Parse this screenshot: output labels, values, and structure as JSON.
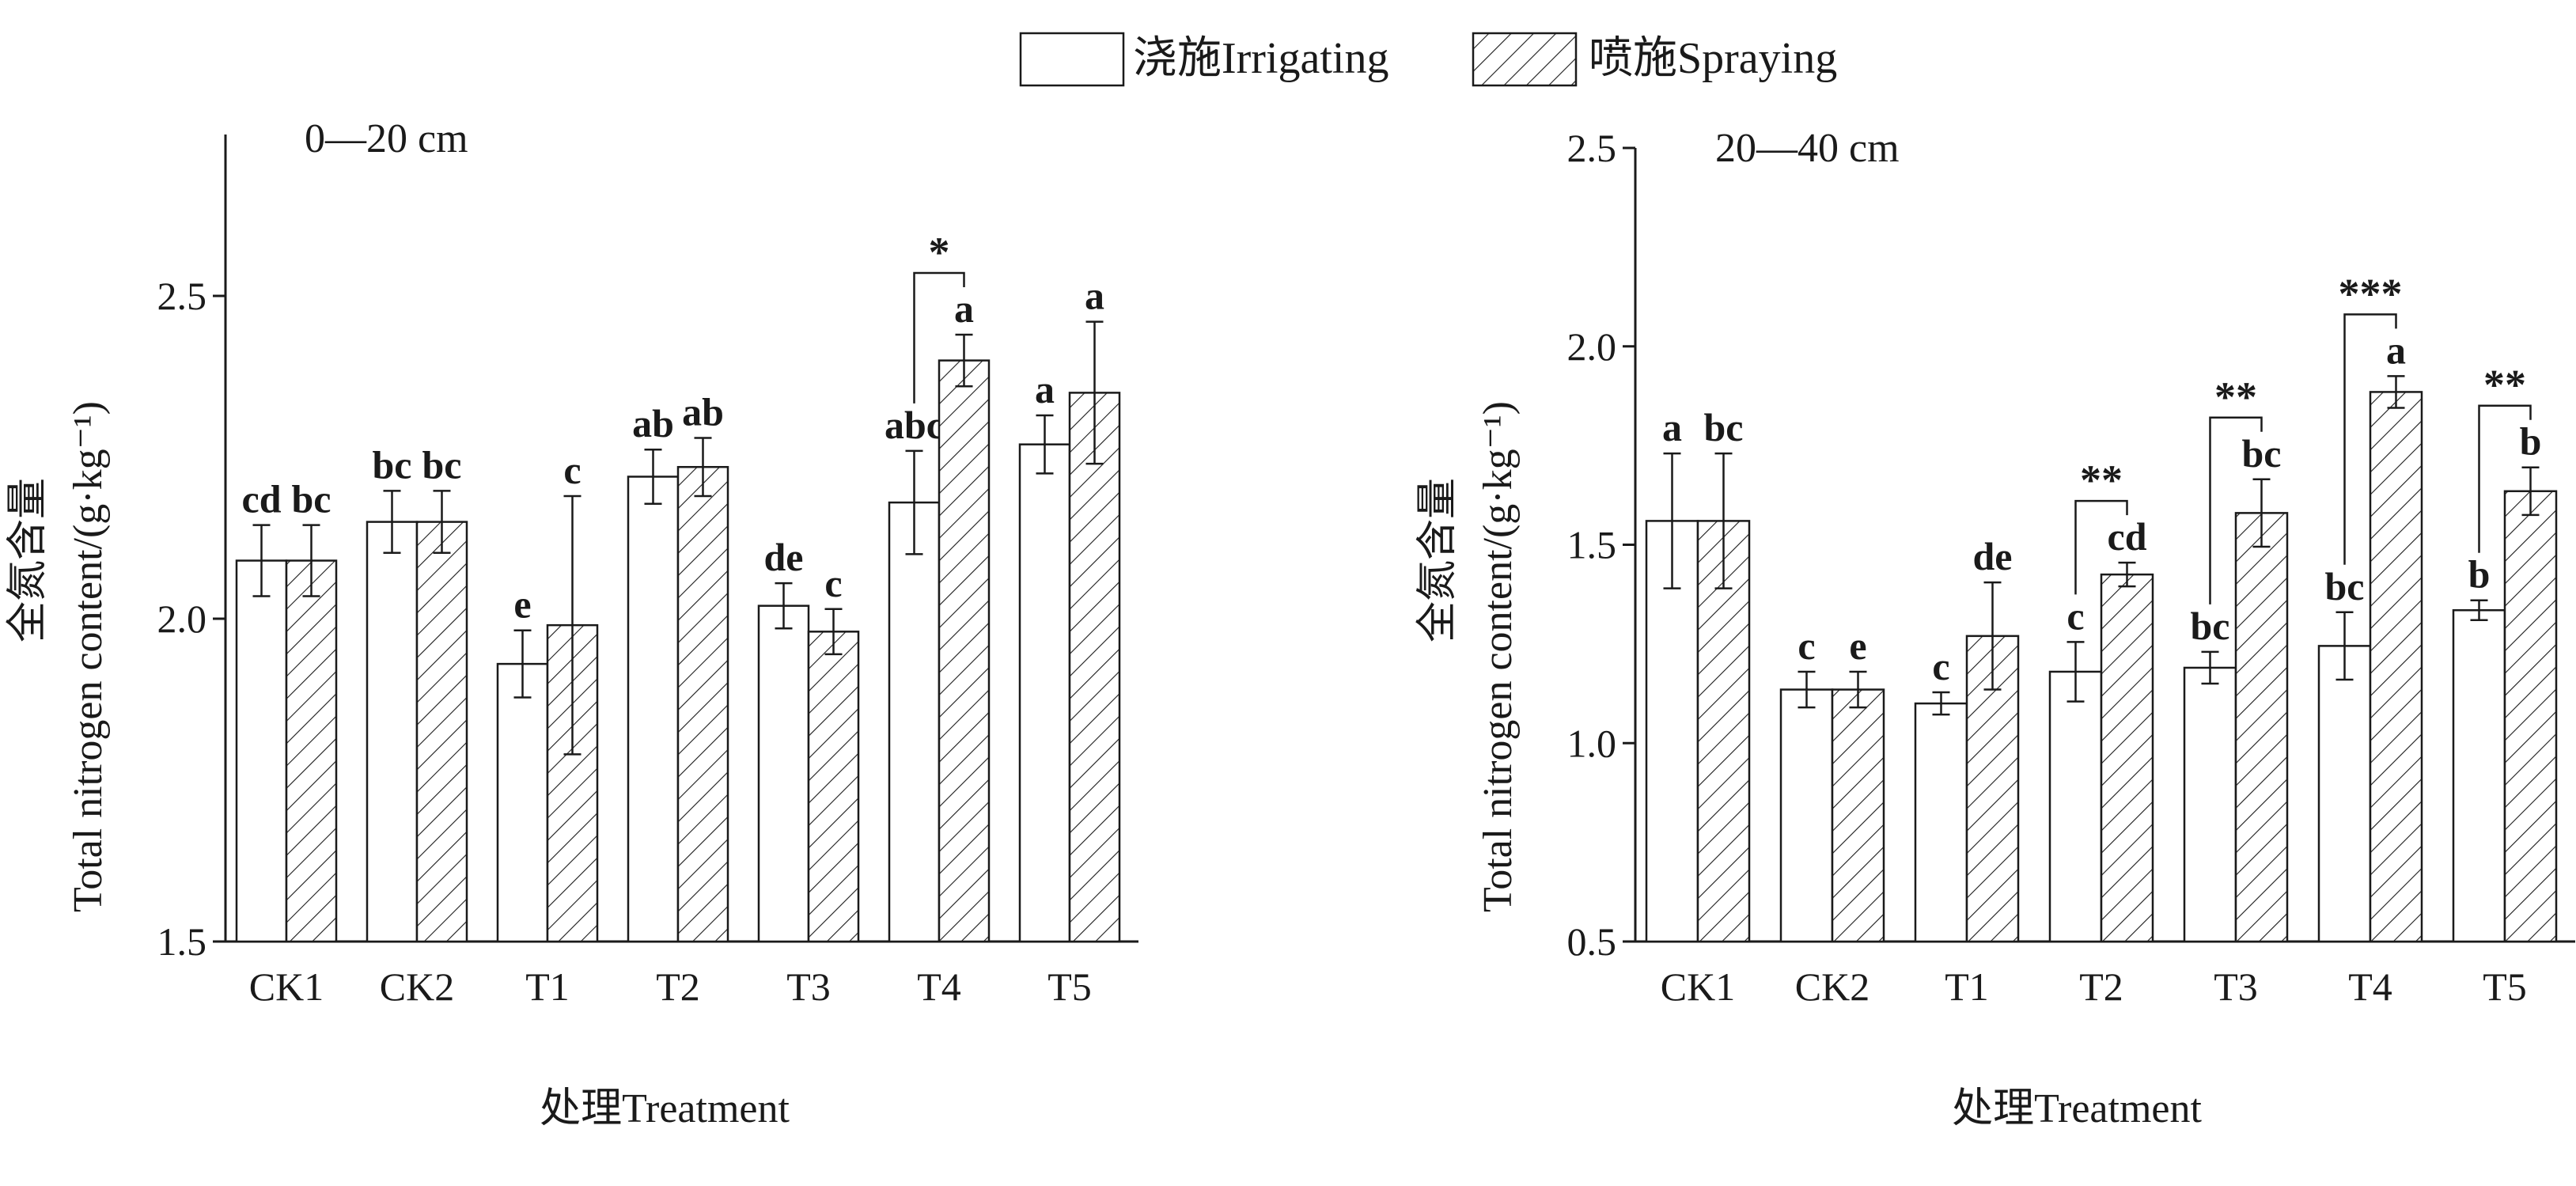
{
  "legend": {
    "irrigating_label": "浇施Irrigating",
    "spraying_label": "喷施Spraying"
  },
  "chart_data": [
    {
      "type": "bar",
      "panel_label": "0—20 cm",
      "xlabel": "处理Treatment",
      "ylabel": "Total nitrogen content/(g·kg⁻¹)",
      "ylabel_cn": "全氮含量",
      "categories": [
        "CK1",
        "CK2",
        "T1",
        "T2",
        "T3",
        "T4",
        "T5"
      ],
      "ylim": [
        1.5,
        2.75
      ],
      "yticks": [
        "1.5",
        "2.0",
        "2.5"
      ],
      "ytick_values": [
        1.5,
        2.0,
        2.5
      ],
      "series": [
        {
          "name": "浇施Irrigating",
          "pattern": "plain",
          "values": [
            2.09,
            2.15,
            1.93,
            2.22,
            2.02,
            2.18,
            2.27
          ],
          "errors": [
            0.055,
            0.048,
            0.052,
            0.042,
            0.035,
            0.08,
            0.045
          ],
          "letters": [
            "cd",
            "bc",
            "e",
            "ab",
            "de",
            "abc",
            "a"
          ]
        },
        {
          "name": "喷施Spraying",
          "pattern": "hatched",
          "values": [
            2.09,
            2.15,
            1.99,
            2.235,
            1.98,
            2.4,
            2.35
          ],
          "errors": [
            0.055,
            0.048,
            0.2,
            0.045,
            0.035,
            0.04,
            0.11
          ],
          "letters": [
            "bc",
            "bc",
            "c",
            "ab",
            "c",
            "a",
            "a"
          ]
        }
      ],
      "significance": [
        {
          "category": "T4",
          "label": "*"
        }
      ]
    },
    {
      "type": "bar",
      "panel_label": "20—40 cm",
      "xlabel": "处理Treatment",
      "ylabel": "Total nitrogen content/(g·kg⁻¹)",
      "ylabel_cn": "全氮含量",
      "categories": [
        "CK1",
        "CK2",
        "T1",
        "T2",
        "T3",
        "T4",
        "T5"
      ],
      "ylim": [
        0.5,
        2.5
      ],
      "yticks": [
        "0.5",
        "1.0",
        "1.5",
        "2.0",
        "2.5"
      ],
      "ytick_values": [
        0.5,
        1.0,
        1.5,
        2.0,
        2.5
      ],
      "series": [
        {
          "name": "浇施Irrigating",
          "pattern": "plain",
          "values": [
            1.56,
            1.135,
            1.1,
            1.18,
            1.19,
            1.245,
            1.335
          ],
          "errors": [
            0.17,
            0.045,
            0.028,
            0.075,
            0.04,
            0.085,
            0.025
          ],
          "letters": [
            "a",
            "c",
            "c",
            "c",
            "bc",
            "bc",
            "b"
          ]
        },
        {
          "name": "喷施Spraying",
          "pattern": "hatched",
          "values": [
            1.56,
            1.135,
            1.27,
            1.425,
            1.58,
            1.885,
            1.635
          ],
          "errors": [
            0.17,
            0.045,
            0.135,
            0.03,
            0.085,
            0.04,
            0.06
          ],
          "letters": [
            "bc",
            "e",
            "de",
            "cd",
            "bc",
            "a",
            "b"
          ]
        }
      ],
      "significance": [
        {
          "category": "T2",
          "label": "**"
        },
        {
          "category": "T3",
          "label": "**"
        },
        {
          "category": "T4",
          "label": "***"
        },
        {
          "category": "T5",
          "label": "**"
        }
      ]
    }
  ]
}
